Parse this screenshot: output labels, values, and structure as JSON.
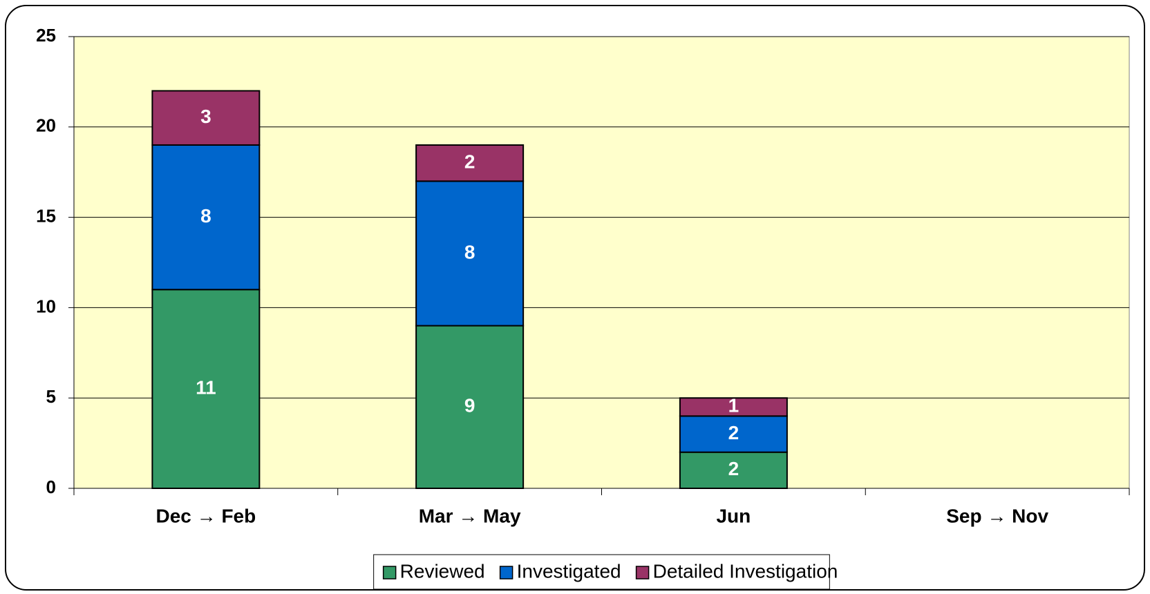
{
  "chart_data": {
    "type": "bar",
    "stacked": true,
    "categories": [
      "Dec → Feb",
      "Mar → May",
      "Jun",
      "Sep → Nov"
    ],
    "series": [
      {
        "name": "Reviewed",
        "color": "#339966",
        "values": [
          11,
          9,
          2,
          null
        ]
      },
      {
        "name": "Investigated",
        "color": "#0066cc",
        "values": [
          8,
          8,
          2,
          null
        ]
      },
      {
        "name": "Detailed Investigation",
        "color": "#993366",
        "values": [
          3,
          2,
          1,
          null
        ]
      }
    ],
    "ylim": [
      0,
      25
    ],
    "yticks": [
      0,
      5,
      10,
      15,
      20,
      25
    ],
    "grid": true,
    "plot_background": "#ffffcc",
    "legend": "bottom"
  }
}
